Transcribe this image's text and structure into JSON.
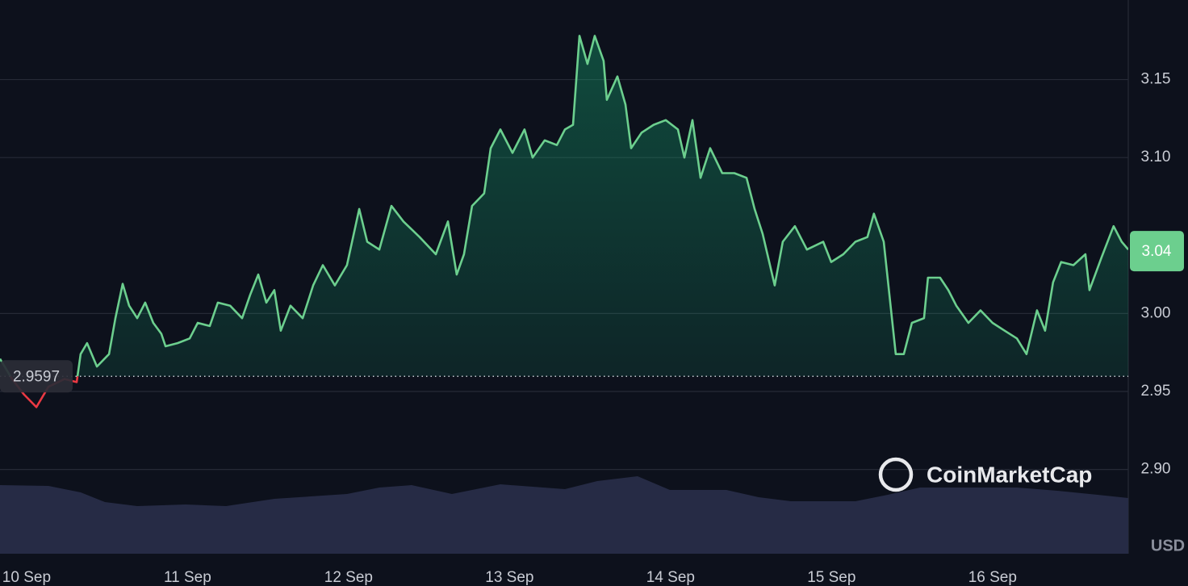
{
  "chart_data": {
    "type": "line",
    "x": [
      9.835,
      9.91,
      9.985,
      10.061,
      10.136,
      10.236,
      10.311,
      10.336,
      10.376,
      10.437,
      10.512,
      10.552,
      10.597,
      10.637,
      10.687,
      10.737,
      10.787,
      10.837,
      10.863,
      10.938,
      11.013,
      11.063,
      11.138,
      11.188,
      11.264,
      11.339,
      11.389,
      11.439,
      11.489,
      11.539,
      11.579,
      11.639,
      11.715,
      11.78,
      11.84,
      11.915,
      11.99,
      12.066,
      12.116,
      12.191,
      12.266,
      12.341,
      12.441,
      12.542,
      12.617,
      12.672,
      12.717,
      12.767,
      12.842,
      12.883,
      12.943,
      13.018,
      13.093,
      13.143,
      13.218,
      13.294,
      13.344,
      13.394,
      13.434,
      13.484,
      13.529,
      13.584,
      13.604,
      13.67,
      13.72,
      13.755,
      13.82,
      13.895,
      13.97,
      14.046,
      14.086,
      14.136,
      14.186,
      14.246,
      14.321,
      14.396,
      14.472,
      14.522,
      14.572,
      14.647,
      14.697,
      14.772,
      14.847,
      14.948,
      14.998,
      15.073,
      15.148,
      15.223,
      15.263,
      15.324,
      15.399,
      15.449,
      15.499,
      15.574,
      15.599,
      15.674,
      15.725,
      15.775,
      15.85,
      15.925,
      16.0,
      16.075,
      16.151,
      16.211,
      16.276,
      16.326,
      16.376,
      16.426,
      16.502,
      16.577,
      16.602,
      16.677,
      16.752,
      16.802,
      16.843
    ],
    "series": [
      {
        "color": "#6ccf8e",
        "values": [
          2.971,
          2.958,
          2.948,
          2.94,
          2.953,
          2.958,
          2.956,
          2.974,
          2.981,
          2.966,
          2.974,
          2.997,
          3.019,
          3.005,
          2.997,
          3.007,
          2.994,
          2.987,
          2.979,
          2.981,
          2.984,
          2.994,
          2.992,
          3.007,
          3.005,
          2.997,
          3.012,
          3.025,
          3.007,
          3.015,
          2.989,
          3.005,
          2.997,
          3.018,
          3.031,
          3.018,
          3.031,
          3.067,
          3.046,
          3.041,
          3.069,
          3.059,
          3.049,
          3.038,
          3.059,
          3.025,
          3.038,
          3.069,
          3.077,
          3.106,
          3.118,
          3.103,
          3.118,
          3.1,
          3.111,
          3.108,
          3.118,
          3.121,
          3.178,
          3.16,
          3.178,
          3.162,
          3.137,
          3.152,
          3.134,
          3.106,
          3.116,
          3.121,
          3.124,
          3.118,
          3.1,
          3.124,
          3.087,
          3.106,
          3.09,
          3.09,
          3.087,
          3.067,
          3.051,
          3.018,
          3.046,
          3.056,
          3.041,
          3.046,
          3.033,
          3.038,
          3.046,
          3.049,
          3.064,
          3.046,
          2.974,
          2.974,
          2.994,
          2.997,
          3.023,
          3.023,
          3.015,
          3.005,
          2.994,
          3.002,
          2.994,
          2.989,
          2.984,
          2.974,
          3.002,
          2.989,
          3.02,
          3.033,
          3.031,
          3.038,
          3.015,
          3.036,
          3.056,
          3.046,
          3.041
        ]
      }
    ],
    "below_color": "#ea3943",
    "reference": {
      "value": 2.9597,
      "label": "2.9597"
    },
    "last_price": {
      "value": 3.04,
      "label": "3.04"
    },
    "xlim": [
      9.835,
      16.843
    ],
    "xticks": [
      {
        "value": 10,
        "label": "10 Sep"
      },
      {
        "value": 11,
        "label": "11 Sep"
      },
      {
        "value": 12,
        "label": "12 Sep"
      },
      {
        "value": 13,
        "label": "13 Sep"
      },
      {
        "value": 14,
        "label": "14 Sep"
      },
      {
        "value": 15,
        "label": "15 Sep"
      },
      {
        "value": 16,
        "label": "16 Sep"
      }
    ],
    "ylim": [
      2.846,
      3.201
    ],
    "yticks": [
      {
        "value": 2.9,
        "label": "2.90"
      },
      2.95,
      {
        "value": 3.0,
        "label": "3.00"
      },
      {
        "value": 3.1,
        "label": "3.10"
      },
      3.15
    ],
    "grid": true,
    "unit": "USD",
    "watermark": "CoinMarketCap"
  }
}
